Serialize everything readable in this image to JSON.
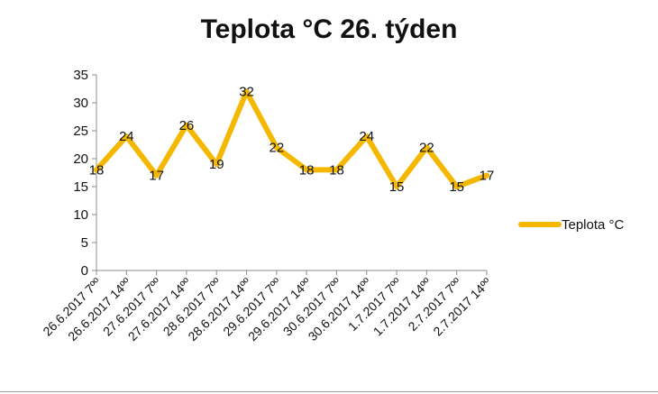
{
  "chart_data": {
    "type": "line",
    "title": "Teplota °C 26. týden",
    "categories": [
      "26.6.2017 7ºº",
      "26.6.2017 14ºº",
      "27.6.2017 7ºº",
      "27.6.2017 14ºº",
      "28.6.2017 7ºº",
      "28.6.2017 14ºº",
      "29.6.2017 7ºº",
      "29.6.2017 14ºº",
      "30.6.2017 7ºº",
      "30.6.2017 14ºº",
      "1.7.2017 7ºº",
      "1.7.2017 14ºº",
      "2.7.2017 7ºº",
      "2.7.2017 14ºº"
    ],
    "series": [
      {
        "name": "Teplota °C",
        "color": "#f5b800",
        "values": [
          18,
          24,
          17,
          26,
          19,
          32,
          22,
          18,
          18,
          24,
          15,
          22,
          15,
          17
        ]
      }
    ],
    "ylim": [
      0,
      35
    ],
    "yticks": [
      0,
      5,
      10,
      15,
      20,
      25,
      30,
      35
    ],
    "xlabel": "",
    "ylabel": "",
    "grid": false,
    "legend_position": "right",
    "data_labels": true
  }
}
